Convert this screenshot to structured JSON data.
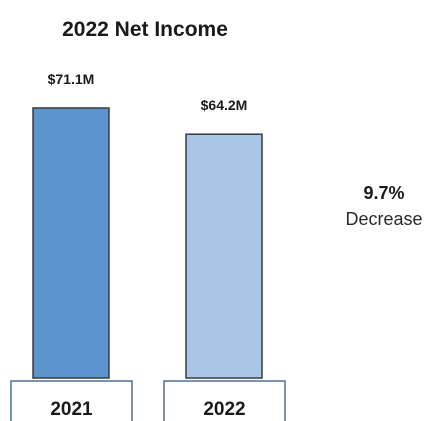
{
  "chart_data": {
    "type": "bar",
    "title": "2022 Net Income",
    "categories": [
      "2021",
      "2022"
    ],
    "values": [
      71.1,
      64.2
    ],
    "value_labels": [
      "$71.1M",
      "$64.2M"
    ],
    "unit": "$M",
    "bar_colors": [
      "#5b93cd",
      "#a9c6e7"
    ],
    "bar_border_color": "#3a3a3a",
    "axis_box_color": "#4a6f9a",
    "ylim": [
      0,
      71.1
    ],
    "grid": false,
    "legend": "none",
    "annotation": {
      "percent": "9.7%",
      "direction": "Decrease"
    }
  }
}
